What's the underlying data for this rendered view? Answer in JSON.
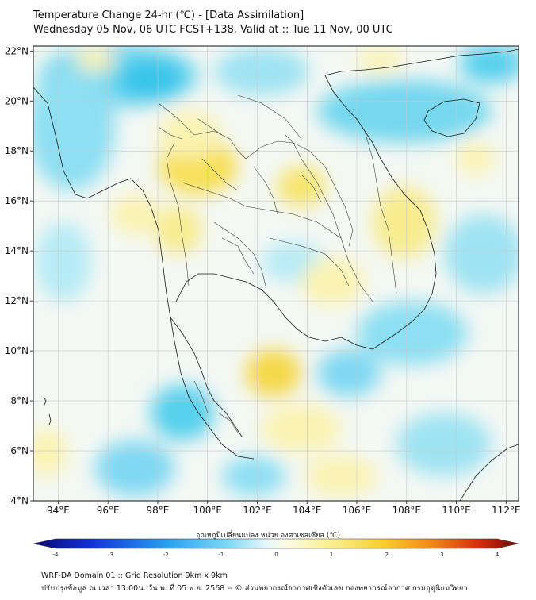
{
  "title": {
    "line1": "Temperature Change 24-hr (℃) - [Data Assimilation]",
    "line2": "Wednesday 05 Nov, 06 UTC FCST+138, Valid at :: Tue 11 Nov, 00 UTC"
  },
  "map": {
    "lat_ticks": [
      "22°N",
      "20°N",
      "18°N",
      "16°N",
      "14°N",
      "12°N",
      "10°N",
      "8°N",
      "6°N",
      "4°N"
    ],
    "lon_ticks": [
      "94°E",
      "96°E",
      "98°E",
      "100°E",
      "102°E",
      "104°E",
      "106°E",
      "108°E",
      "110°E",
      "112°E"
    ],
    "extent": {
      "lon_min": 93,
      "lon_max": 112.5,
      "lat_min": 4,
      "lat_max": 22.2
    }
  },
  "colorbar": {
    "label": "อุณหภูมิเปลี่ยนแปลง หน่วย องศาเซลเซียส (℃)",
    "ticks": [
      "-4",
      "-3",
      "-2",
      "-1",
      "0",
      "1",
      "2",
      "3",
      "4"
    ],
    "min": -4,
    "max": 4
  },
  "footer": {
    "line1": "WRF-DA Domain 01 :: Grid Resolution 9km x 9km",
    "line2": "ปรับปรุงข้อมูล ณ เวลา 13:00น. วัน พ. ที่ 05 พ.ย. 2568 -- © ส่วนพยากรณ์อากาศเชิงตัวเลข กองพยากรณ์อากาศ กรมอุตุนิยมวิทยา"
  },
  "colors": {
    "ocean_bg": "#f4f8f4",
    "warm_light": "#fbf3b0",
    "warm_mid": "#f7df55",
    "cool_light": "#cfeff8",
    "cool_mid": "#56d0ee",
    "coast": "#1a1a1a",
    "grid": "#c8c8c8"
  }
}
